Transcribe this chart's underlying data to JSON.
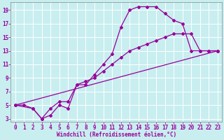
{
  "xlabel": "Windchill (Refroidissement éolien,°C)",
  "bg_color": "#c8eef0",
  "grid_color": "#ffffff",
  "line_color": "#990099",
  "xlim": [
    -0.5,
    23.5
  ],
  "ylim": [
    2.5,
    20.2
  ],
  "xticks": [
    0,
    1,
    2,
    3,
    4,
    5,
    6,
    7,
    8,
    9,
    10,
    11,
    12,
    13,
    14,
    15,
    16,
    17,
    18,
    19,
    20,
    21,
    22,
    23
  ],
  "yticks": [
    3,
    5,
    7,
    9,
    11,
    13,
    15,
    17,
    19
  ],
  "curve1_x": [
    0,
    1,
    2,
    3,
    4,
    5,
    6,
    7,
    8,
    9,
    10,
    11,
    12,
    13,
    14,
    15,
    16,
    17,
    18,
    19,
    20,
    21,
    22,
    23
  ],
  "curve1_y": [
    5,
    5,
    4.5,
    3,
    3.5,
    5,
    4.5,
    8,
    8,
    9.5,
    11,
    12.5,
    16.5,
    19,
    19.5,
    19.5,
    19.5,
    18.5,
    17.5,
    17,
    13,
    13,
    13,
    13
  ],
  "curve2_x": [
    0,
    2,
    3,
    4,
    5,
    6,
    7,
    8,
    9,
    10,
    11,
    12,
    13,
    14,
    15,
    16,
    17,
    18,
    19,
    20,
    21,
    22,
    23
  ],
  "curve2_y": [
    5,
    4.5,
    3,
    4.5,
    5.5,
    5.5,
    8,
    8.5,
    9,
    10,
    11,
    12,
    13,
    13.5,
    14,
    14.5,
    15,
    15.5,
    15.5,
    15.5,
    13,
    13,
    13
  ],
  "curve3_x": [
    0,
    23
  ],
  "curve3_y": [
    5,
    13
  ],
  "marker": "D",
  "markersize": 2.0,
  "linewidth": 0.9
}
